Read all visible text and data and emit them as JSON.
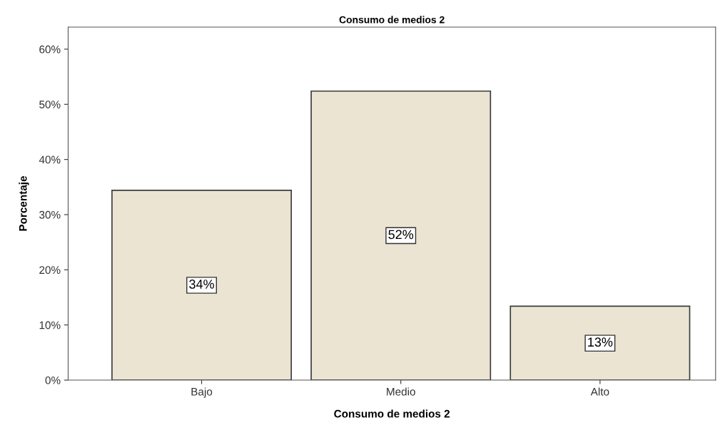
{
  "chart_data": {
    "type": "bar",
    "title": "Consumo de medios 2",
    "xlabel": "Consumo de medios 2",
    "ylabel": "Porcentaje",
    "categories": [
      "Bajo",
      "Medio",
      "Alto"
    ],
    "values": [
      34.4,
      52.4,
      13.4
    ],
    "value_labels": [
      "34%",
      "52%",
      "13%"
    ],
    "color": "#ebe4d2",
    "ylim": [
      0,
      64
    ],
    "yticks": [
      {
        "value": 0,
        "label": "0%"
      },
      {
        "value": 10,
        "label": "10%"
      },
      {
        "value": 20,
        "label": "20%"
      },
      {
        "value": 30,
        "label": "30%"
      },
      {
        "value": 40,
        "label": "40%"
      },
      {
        "value": 50,
        "label": "50%"
      },
      {
        "value": 60,
        "label": "60%"
      }
    ],
    "grid": false,
    "legend": false
  }
}
